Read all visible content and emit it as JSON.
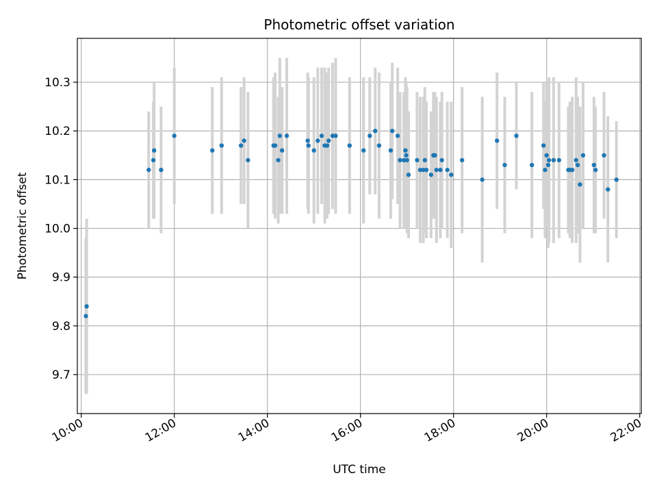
{
  "chart_data": {
    "type": "scatter",
    "title": "Photometric offset variation",
    "xlabel": "UTC time",
    "ylabel": "Photometric offset",
    "x_axis_format": "HH:MM",
    "xlim": [
      "09:55",
      "22:02"
    ],
    "ylim": [
      9.62,
      10.39
    ],
    "x_ticks": [
      "10:00",
      "12:00",
      "14:00",
      "16:00",
      "18:00",
      "20:00",
      "22:00"
    ],
    "y_ticks": [
      "9.7",
      "9.8",
      "9.9",
      "10.0",
      "10.1",
      "10.2",
      "10.3"
    ],
    "grid": true,
    "colors": {
      "point": "#1f77b4",
      "errorbar": "#d3d3d3",
      "grid": "#b0b0b0"
    },
    "series": [
      {
        "points": [
          {
            "x": "10:06",
            "y": 9.82,
            "err": 0.16
          },
          {
            "x": "10:07",
            "y": 9.84,
            "err": 0.18
          },
          {
            "x": "11:27",
            "y": 10.12,
            "err": 0.12
          },
          {
            "x": "11:33",
            "y": 10.14,
            "err": 0.12
          },
          {
            "x": "11:34",
            "y": 10.16,
            "err": 0.14
          },
          {
            "x": "11:43",
            "y": 10.12,
            "err": 0.13
          },
          {
            "x": "12:00",
            "y": 10.19,
            "err": 0.14
          },
          {
            "x": "12:49",
            "y": 10.16,
            "err": 0.13
          },
          {
            "x": "13:01",
            "y": 10.17,
            "err": 0.14
          },
          {
            "x": "13:26",
            "y": 10.17,
            "err": 0.12
          },
          {
            "x": "13:30",
            "y": 10.18,
            "err": 0.13
          },
          {
            "x": "13:35",
            "y": 10.14,
            "err": 0.14
          },
          {
            "x": "14:08",
            "y": 10.17,
            "err": 0.14
          },
          {
            "x": "14:10",
            "y": 10.17,
            "err": 0.15
          },
          {
            "x": "14:14",
            "y": 10.14,
            "err": 0.13
          },
          {
            "x": "14:16",
            "y": 10.19,
            "err": 0.16
          },
          {
            "x": "14:19",
            "y": 10.16,
            "err": 0.13
          },
          {
            "x": "14:25",
            "y": 10.19,
            "err": 0.16
          },
          {
            "x": "14:52",
            "y": 10.18,
            "err": 0.14
          },
          {
            "x": "14:53",
            "y": 10.17,
            "err": 0.14
          },
          {
            "x": "15:00",
            "y": 10.16,
            "err": 0.15
          },
          {
            "x": "15:05",
            "y": 10.18,
            "err": 0.15
          },
          {
            "x": "15:10",
            "y": 10.19,
            "err": 0.14
          },
          {
            "x": "15:14",
            "y": 10.17,
            "err": 0.16
          },
          {
            "x": "15:17",
            "y": 10.17,
            "err": 0.15
          },
          {
            "x": "15:19",
            "y": 10.18,
            "err": 0.15
          },
          {
            "x": "15:24",
            "y": 10.19,
            "err": 0.15
          },
          {
            "x": "15:28",
            "y": 10.19,
            "err": 0.16
          },
          {
            "x": "15:46",
            "y": 10.17,
            "err": 0.14
          },
          {
            "x": "16:04",
            "y": 10.16,
            "err": 0.15
          },
          {
            "x": "16:12",
            "y": 10.19,
            "err": 0.12
          },
          {
            "x": "16:19",
            "y": 10.2,
            "err": 0.13
          },
          {
            "x": "16:24",
            "y": 10.17,
            "err": 0.15
          },
          {
            "x": "16:39",
            "y": 10.16,
            "err": 0.14
          },
          {
            "x": "16:41",
            "y": 10.2,
            "err": 0.14
          },
          {
            "x": "16:48",
            "y": 10.19,
            "err": 0.14
          },
          {
            "x": "16:51",
            "y": 10.14,
            "err": 0.14
          },
          {
            "x": "16:56",
            "y": 10.14,
            "err": 0.14
          },
          {
            "x": "16:58",
            "y": 10.16,
            "err": 0.15
          },
          {
            "x": "16:59",
            "y": 10.15,
            "err": 0.15
          },
          {
            "x": "17:00",
            "y": 10.14,
            "err": 0.15
          },
          {
            "x": "17:02",
            "y": 10.11,
            "err": 0.13
          },
          {
            "x": "17:13",
            "y": 10.14,
            "err": 0.14
          },
          {
            "x": "17:17",
            "y": 10.12,
            "err": 0.15
          },
          {
            "x": "17:21",
            "y": 10.12,
            "err": 0.15
          },
          {
            "x": "17:23",
            "y": 10.14,
            "err": 0.15
          },
          {
            "x": "17:25",
            "y": 10.12,
            "err": 0.14
          },
          {
            "x": "17:31",
            "y": 10.11,
            "err": 0.13
          },
          {
            "x": "17:34",
            "y": 10.15,
            "err": 0.13
          },
          {
            "x": "17:36",
            "y": 10.15,
            "err": 0.13
          },
          {
            "x": "17:38",
            "y": 10.12,
            "err": 0.15
          },
          {
            "x": "17:43",
            "y": 10.12,
            "err": 0.14
          },
          {
            "x": "17:45",
            "y": 10.14,
            "err": 0.14
          },
          {
            "x": "17:52",
            "y": 10.12,
            "err": 0.14
          },
          {
            "x": "17:57",
            "y": 10.11,
            "err": 0.15
          },
          {
            "x": "18:11",
            "y": 10.14,
            "err": 0.15
          },
          {
            "x": "18:37",
            "y": 10.1,
            "err": 0.17
          },
          {
            "x": "18:56",
            "y": 10.18,
            "err": 0.14
          },
          {
            "x": "19:06",
            "y": 10.13,
            "err": 0.14
          },
          {
            "x": "19:21",
            "y": 10.19,
            "err": 0.11
          },
          {
            "x": "19:41",
            "y": 10.13,
            "err": 0.15
          },
          {
            "x": "19:56",
            "y": 10.17,
            "err": 0.13
          },
          {
            "x": "19:58",
            "y": 10.12,
            "err": 0.14
          },
          {
            "x": "20:00",
            "y": 10.15,
            "err": 0.15
          },
          {
            "x": "20:02",
            "y": 10.13,
            "err": 0.17
          },
          {
            "x": "20:03",
            "y": 10.14,
            "err": 0.17
          },
          {
            "x": "20:09",
            "y": 10.14,
            "err": 0.17
          },
          {
            "x": "20:16",
            "y": 10.14,
            "err": 0.16
          },
          {
            "x": "20:28",
            "y": 10.12,
            "err": 0.13
          },
          {
            "x": "20:30",
            "y": 10.12,
            "err": 0.14
          },
          {
            "x": "20:33",
            "y": 10.12,
            "err": 0.15
          },
          {
            "x": "20:38",
            "y": 10.14,
            "err": 0.17
          },
          {
            "x": "20:40",
            "y": 10.13,
            "err": 0.14
          },
          {
            "x": "20:43",
            "y": 10.09,
            "err": 0.16
          },
          {
            "x": "20:47",
            "y": 10.15,
            "err": 0.15
          },
          {
            "x": "21:01",
            "y": 10.13,
            "err": 0.14
          },
          {
            "x": "21:03",
            "y": 10.12,
            "err": 0.13
          },
          {
            "x": "21:14",
            "y": 10.15,
            "err": 0.13
          },
          {
            "x": "21:19",
            "y": 10.08,
            "err": 0.15
          },
          {
            "x": "21:30",
            "y": 10.1,
            "err": 0.12
          }
        ]
      }
    ]
  }
}
